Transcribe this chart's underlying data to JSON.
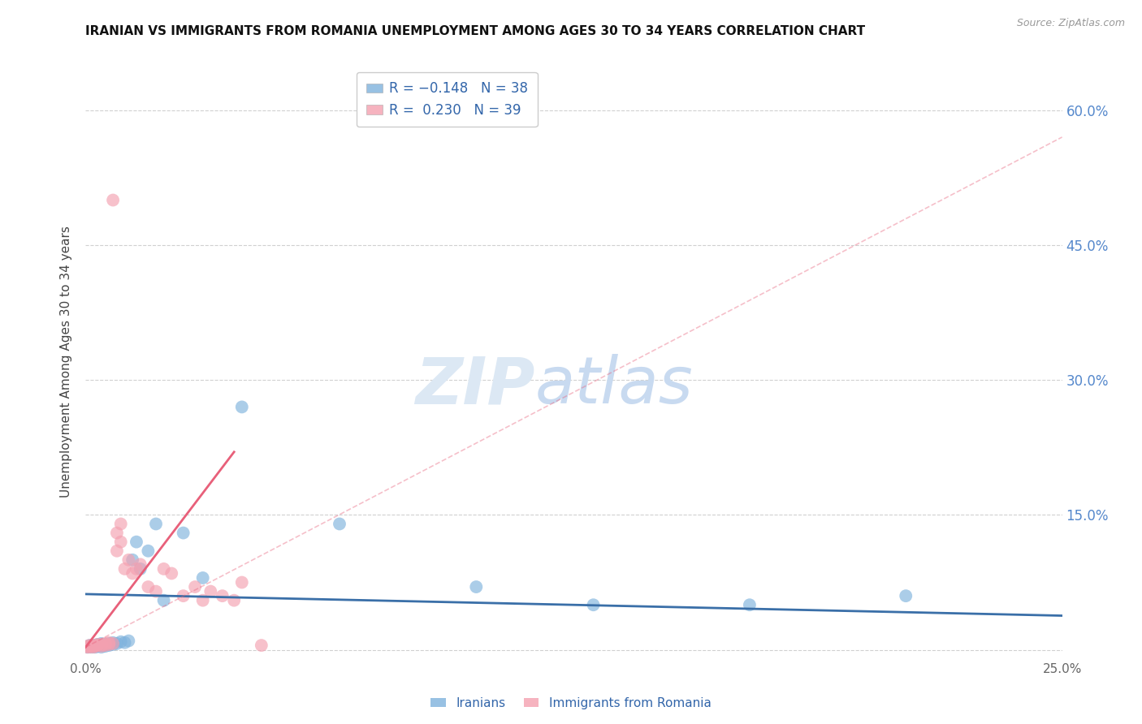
{
  "title": "IRANIAN VS IMMIGRANTS FROM ROMANIA UNEMPLOYMENT AMONG AGES 30 TO 34 YEARS CORRELATION CHART",
  "source": "Source: ZipAtlas.com",
  "ylabel": "Unemployment Among Ages 30 to 34 years",
  "yticks": [
    0.0,
    0.15,
    0.3,
    0.45,
    0.6
  ],
  "ytick_labels": [
    "",
    "15.0%",
    "30.0%",
    "45.0%",
    "60.0%"
  ],
  "xlim": [
    0.0,
    0.25
  ],
  "ylim": [
    -0.01,
    0.65
  ],
  "legend_iranians": "Iranians",
  "legend_romania": "Immigrants from Romania",
  "color_iranian": "#7EB2DD",
  "color_romania": "#F4A0B0",
  "color_trend_iranian": "#3A6FA8",
  "color_trend_romania": "#E8607A",
  "iranians_x": [
    0.0005,
    0.001,
    0.001,
    0.0015,
    0.0015,
    0.002,
    0.002,
    0.0025,
    0.003,
    0.003,
    0.003,
    0.004,
    0.004,
    0.004,
    0.005,
    0.005,
    0.006,
    0.006,
    0.007,
    0.007,
    0.008,
    0.009,
    0.01,
    0.011,
    0.012,
    0.013,
    0.014,
    0.016,
    0.018,
    0.02,
    0.025,
    0.03,
    0.04,
    0.065,
    0.1,
    0.13,
    0.17,
    0.21
  ],
  "iranians_y": [
    0.003,
    0.004,
    0.005,
    0.003,
    0.004,
    0.004,
    0.005,
    0.003,
    0.004,
    0.005,
    0.006,
    0.003,
    0.005,
    0.007,
    0.004,
    0.006,
    0.005,
    0.007,
    0.006,
    0.008,
    0.007,
    0.009,
    0.008,
    0.01,
    0.1,
    0.12,
    0.09,
    0.11,
    0.14,
    0.055,
    0.13,
    0.08,
    0.27,
    0.14,
    0.07,
    0.05,
    0.05,
    0.06
  ],
  "romania_x": [
    0.0003,
    0.0005,
    0.001,
    0.001,
    0.0015,
    0.002,
    0.002,
    0.0025,
    0.003,
    0.003,
    0.004,
    0.004,
    0.005,
    0.005,
    0.006,
    0.006,
    0.007,
    0.007,
    0.008,
    0.008,
    0.009,
    0.009,
    0.01,
    0.011,
    0.012,
    0.013,
    0.014,
    0.016,
    0.018,
    0.02,
    0.022,
    0.025,
    0.028,
    0.03,
    0.032,
    0.035,
    0.038,
    0.04,
    0.045
  ],
  "romania_y": [
    0.003,
    0.004,
    0.003,
    0.005,
    0.004,
    0.003,
    0.005,
    0.004,
    0.005,
    0.006,
    0.004,
    0.006,
    0.005,
    0.007,
    0.006,
    0.008,
    0.5,
    0.007,
    0.13,
    0.11,
    0.14,
    0.12,
    0.09,
    0.1,
    0.085,
    0.09,
    0.095,
    0.07,
    0.065,
    0.09,
    0.085,
    0.06,
    0.07,
    0.055,
    0.065,
    0.06,
    0.055,
    0.075,
    0.005
  ],
  "trend_iranian_x0": 0.0,
  "trend_iranian_x1": 0.25,
  "trend_iranian_y0": 0.062,
  "trend_iranian_y1": 0.038,
  "trend_romania_solid_x0": 0.0,
  "trend_romania_solid_x1": 0.038,
  "trend_romania_solid_y0": 0.003,
  "trend_romania_solid_y1": 0.22,
  "trend_romania_dash_x0": 0.0,
  "trend_romania_dash_x1": 0.25,
  "trend_romania_dash_y0": 0.003,
  "trend_romania_dash_y1": 0.57
}
